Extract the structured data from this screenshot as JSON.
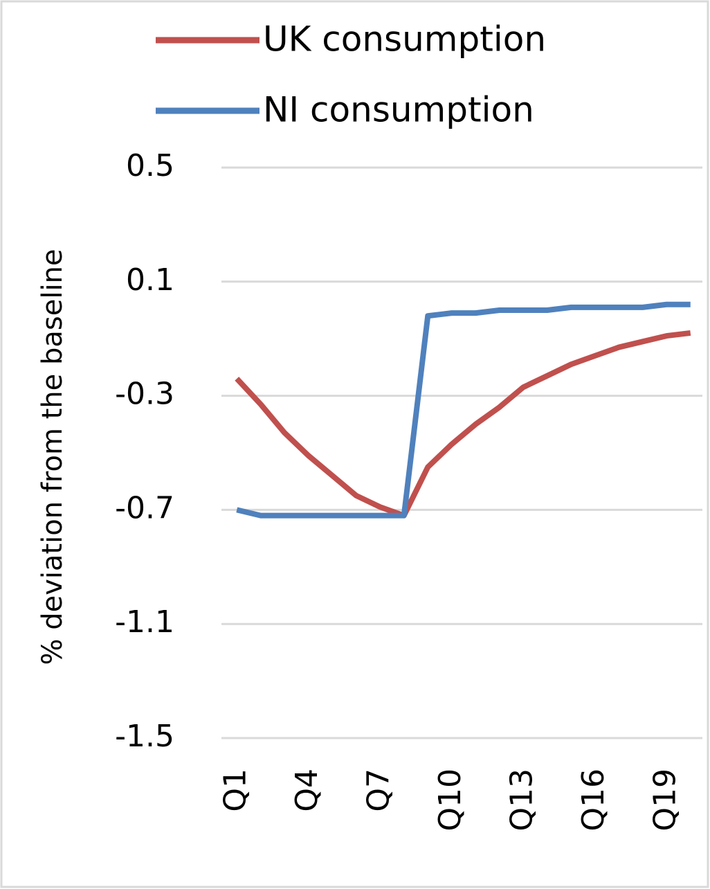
{
  "chart_data": {
    "type": "line",
    "y_label": "% deviation from the baseline",
    "categories": [
      "Q1",
      null,
      null,
      "Q4",
      null,
      null,
      "Q7",
      null,
      null,
      "Q10",
      null,
      null,
      "Q13",
      null,
      null,
      "Q16",
      null,
      null,
      "Q19",
      null
    ],
    "series": [
      {
        "name": "UK consumption",
        "color": "#c0504d",
        "values": [
          -0.24,
          -0.33,
          -0.43,
          -0.51,
          -0.58,
          -0.65,
          -0.69,
          -0.72,
          -0.55,
          -0.47,
          -0.4,
          -0.34,
          -0.27,
          -0.23,
          -0.19,
          -0.16,
          -0.13,
          -0.11,
          -0.09,
          -0.08
        ]
      },
      {
        "name": "NI consumption",
        "color": "#4f81bd",
        "values": [
          -0.7,
          -0.72,
          -0.72,
          -0.72,
          -0.72,
          -0.72,
          -0.72,
          -0.72,
          -0.02,
          -0.01,
          -0.01,
          0,
          0,
          0,
          0.01,
          0.01,
          0.01,
          0.01,
          0.02,
          0.02
        ]
      }
    ],
    "ylim": [
      -1.5,
      0.5
    ],
    "yticks": [
      0.5,
      0.1,
      -0.3,
      -0.7,
      -1.1,
      -1.5
    ],
    "grid": true,
    "legend": "top"
  }
}
